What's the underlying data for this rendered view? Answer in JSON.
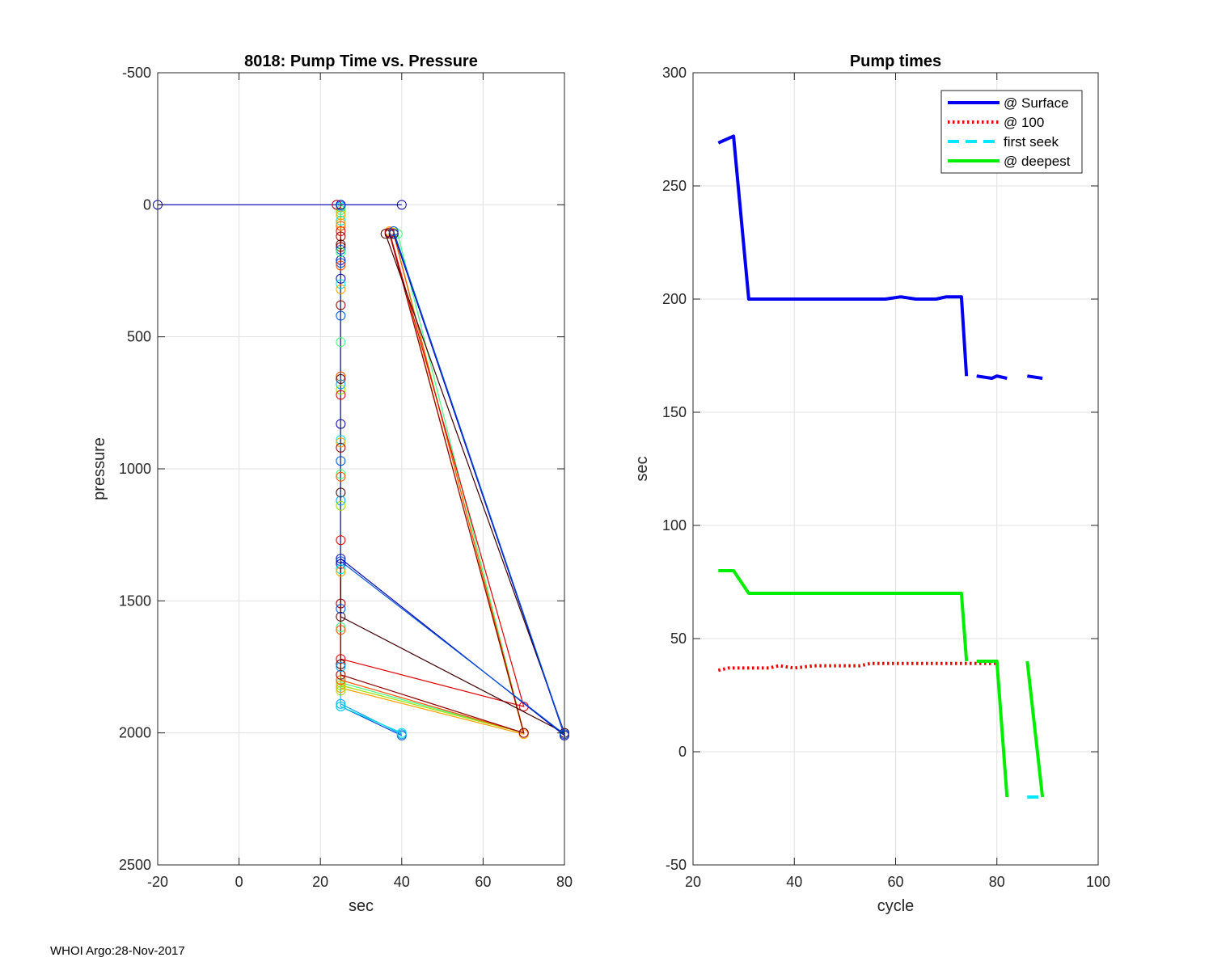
{
  "footer": "WHOI Argo:28-Nov-2017",
  "chart_data": [
    {
      "type": "scatter",
      "title": "8018: Pump Time vs. Pressure",
      "xlabel": "sec",
      "ylabel": "pressure",
      "xlim": [
        -20,
        80
      ],
      "ylim": [
        -500,
        2500
      ],
      "y_reversed": true,
      "xticks": [
        -20,
        0,
        20,
        40,
        60,
        80
      ],
      "yticks": [
        -500,
        0,
        500,
        1000,
        1500,
        2000,
        2500
      ],
      "grid": true,
      "colors": [
        "#0000b0",
        "#0050e0",
        "#00a0ff",
        "#00e0e0",
        "#40ff80",
        "#a0e000",
        "#ffa000",
        "#ff5000",
        "#e00000",
        "#900000",
        "#400000"
      ],
      "profiles": [
        {
          "points": [
            [
              -20,
              0
            ],
            [
              24,
              0
            ],
            [
              40,
              0
            ]
          ]
        },
        {
          "points": [
            [
              25,
              0
            ],
            [
              25,
              1900
            ],
            [
              40,
              2010
            ]
          ]
        },
        {
          "points": [
            [
              25,
              5
            ],
            [
              25,
              1890
            ],
            [
              40,
              2005
            ]
          ]
        },
        {
          "points": [
            [
              25,
              10
            ],
            [
              25,
              1900
            ],
            [
              40,
              2000
            ]
          ]
        },
        {
          "points": [
            [
              25,
              20
            ],
            [
              25,
              1810
            ],
            [
              70,
              2000
            ],
            [
              39,
              110
            ]
          ]
        },
        {
          "points": [
            [
              25,
              30
            ],
            [
              25,
              1820
            ],
            [
              70,
              2000
            ],
            [
              38,
              105
            ]
          ]
        },
        {
          "points": [
            [
              25,
              40
            ],
            [
              25,
              1830
            ],
            [
              70,
              2005
            ],
            [
              37,
              100
            ]
          ]
        },
        {
          "points": [
            [
              25,
              80
            ],
            [
              25,
              1800
            ],
            [
              70,
              2000
            ],
            [
              38,
              110
            ]
          ]
        },
        {
          "points": [
            [
              25,
              100
            ],
            [
              25,
              1720
            ],
            [
              70,
              1900
            ],
            [
              37,
              105
            ]
          ]
        },
        {
          "points": [
            [
              25,
              120
            ],
            [
              25,
              1780
            ],
            [
              70,
              2000
            ],
            [
              37,
              110
            ]
          ]
        },
        {
          "points": [
            [
              25,
              150
            ],
            [
              25,
              1560
            ],
            [
              80,
              2000
            ],
            [
              36,
              110
            ]
          ]
        },
        {
          "points": [
            [
              25,
              210
            ],
            [
              25,
              1340
            ],
            [
              80,
              2010
            ],
            [
              38,
              110
            ]
          ]
        },
        {
          "points": [
            [
              25,
              220
            ],
            [
              25,
              1350
            ],
            [
              80,
              2005
            ],
            [
              38,
              100
            ]
          ]
        }
      ],
      "extra_markers": [
        [
          25,
          280
        ],
        [
          25,
          300
        ],
        [
          25,
          320
        ],
        [
          25,
          380
        ],
        [
          25,
          420
        ],
        [
          25,
          520
        ],
        [
          25,
          650
        ],
        [
          25,
          660
        ],
        [
          25,
          680
        ],
        [
          25,
          700
        ],
        [
          25,
          720
        ],
        [
          25,
          830
        ],
        [
          25,
          890
        ],
        [
          25,
          900
        ],
        [
          25,
          920
        ],
        [
          25,
          970
        ],
        [
          25,
          1020
        ],
        [
          25,
          1030
        ],
        [
          25,
          1090
        ],
        [
          25,
          1120
        ],
        [
          25,
          1140
        ],
        [
          25,
          1270
        ],
        [
          25,
          1360
        ],
        [
          25,
          1380
        ],
        [
          25,
          1390
        ],
        [
          25,
          1510
        ],
        [
          25,
          1530
        ],
        [
          25,
          1600
        ],
        [
          25,
          1610
        ],
        [
          25,
          1740
        ],
        [
          25,
          1750
        ],
        [
          25,
          1840
        ],
        [
          24,
          0
        ],
        [
          25,
          0
        ],
        [
          25,
          60
        ],
        [
          25,
          70
        ],
        [
          25,
          160
        ],
        [
          25,
          170
        ],
        [
          25,
          180
        ],
        [
          25,
          230
        ]
      ]
    },
    {
      "type": "line",
      "title": "Pump times",
      "xlabel": "cycle",
      "ylabel": "sec",
      "xlim": [
        20,
        100
      ],
      "ylim": [
        -50,
        300
      ],
      "xticks": [
        20,
        40,
        60,
        80,
        100
      ],
      "yticks": [
        -50,
        0,
        50,
        100,
        150,
        200,
        250,
        300
      ],
      "grid": true,
      "legend_position": "top-right",
      "series": [
        {
          "name": "@ Surface",
          "color": "#0000ee",
          "style": "solid",
          "segments": [
            [
              [
                25,
                269
              ],
              [
                28,
                272
              ],
              [
                31,
                200
              ],
              [
                40,
                200
              ],
              [
                50,
                200
              ],
              [
                58,
                200
              ],
              [
                61,
                201
              ],
              [
                64,
                200
              ],
              [
                68,
                200
              ],
              [
                70,
                201
              ],
              [
                73,
                201
              ],
              [
                74,
                166
              ]
            ],
            [
              [
                76,
                166
              ],
              [
                79,
                165
              ],
              [
                80,
                166
              ],
              [
                82,
                165
              ]
            ],
            [
              [
                86,
                166
              ],
              [
                89,
                165
              ]
            ]
          ]
        },
        {
          "name": "@ 100",
          "color": "#ee0000",
          "style": "dotted",
          "segments": [
            [
              [
                25,
                36
              ],
              [
                27,
                37
              ],
              [
                31,
                37
              ],
              [
                35,
                37
              ],
              [
                37,
                38
              ],
              [
                40,
                37
              ],
              [
                44,
                38
              ],
              [
                48,
                38
              ],
              [
                53,
                38
              ],
              [
                55,
                39
              ],
              [
                60,
                39
              ],
              [
                65,
                39
              ],
              [
                70,
                39
              ],
              [
                74,
                39
              ],
              [
                76,
                39
              ],
              [
                80,
                39
              ]
            ]
          ]
        },
        {
          "name": "first seek",
          "color": "#00e8ff",
          "style": "dashed",
          "segments": [
            [
              [
                86,
                -20
              ],
              [
                89,
                -20
              ]
            ]
          ]
        },
        {
          "name": "@ deepest",
          "color": "#00ee00",
          "style": "solid",
          "segments": [
            [
              [
                25,
                80
              ],
              [
                28,
                80
              ],
              [
                31,
                70
              ],
              [
                40,
                70
              ],
              [
                50,
                70
              ],
              [
                60,
                70
              ],
              [
                70,
                70
              ],
              [
                73,
                70
              ],
              [
                74,
                40
              ]
            ],
            [
              [
                76,
                40
              ],
              [
                80,
                40
              ],
              [
                82,
                -20
              ]
            ],
            [
              [
                86,
                40
              ],
              [
                89,
                -20
              ]
            ]
          ]
        }
      ]
    }
  ]
}
